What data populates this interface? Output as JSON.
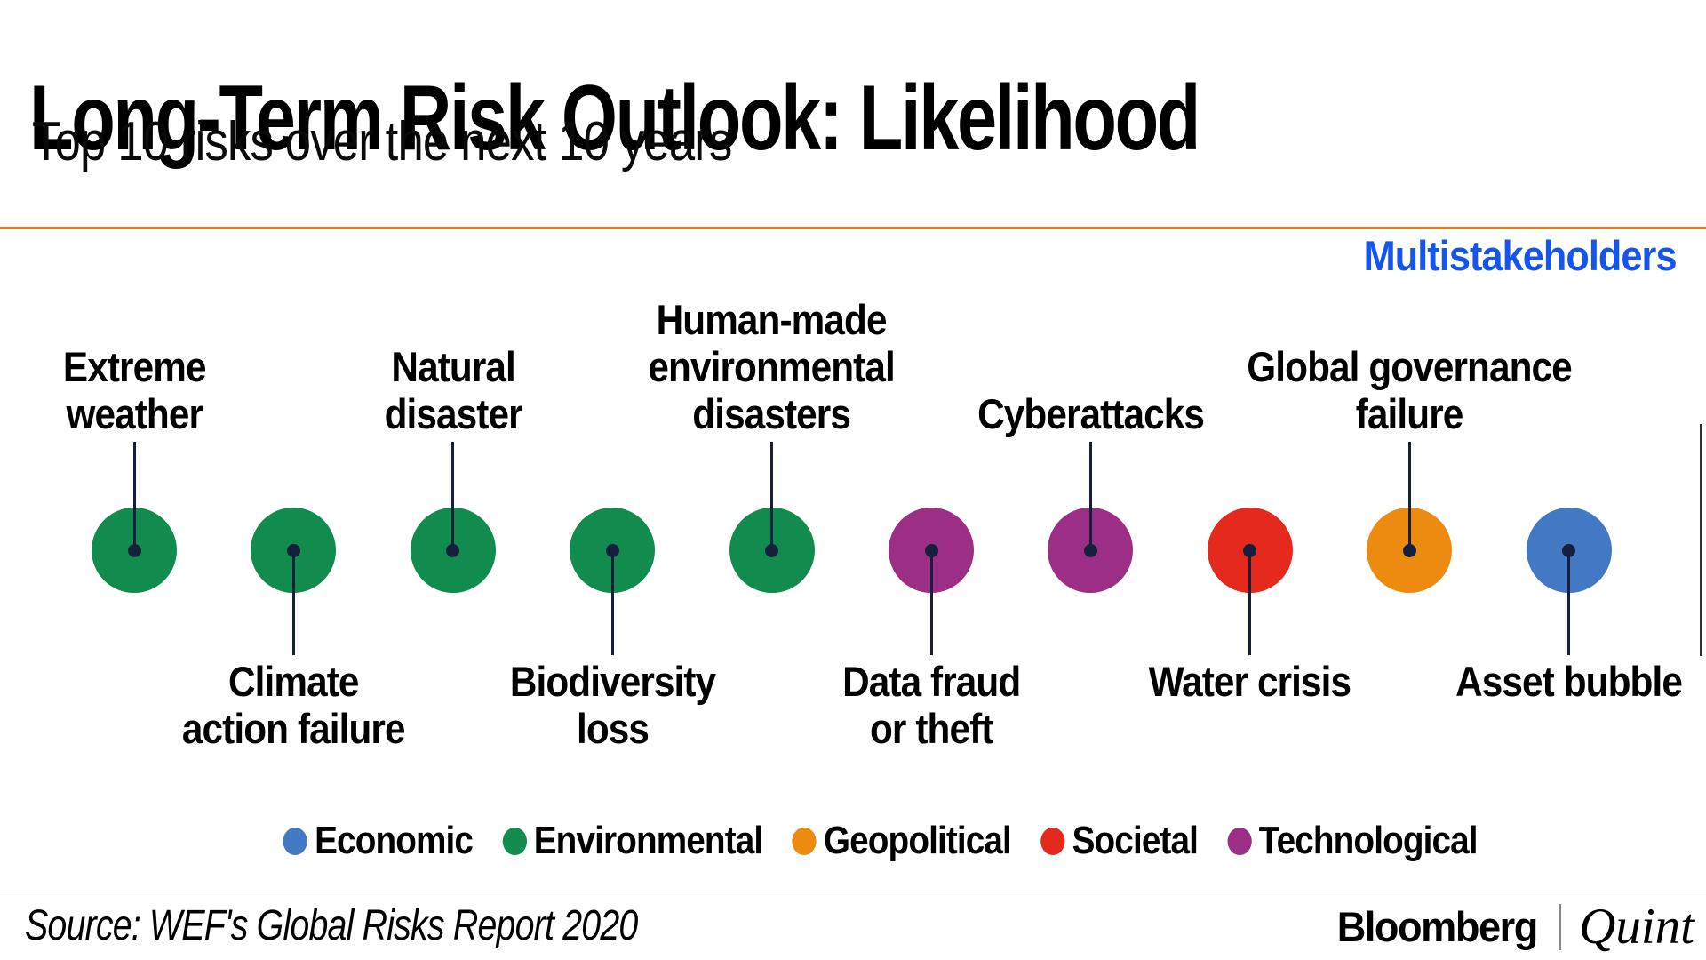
{
  "header": {
    "title": "Long-Term Risk Outlook: Likelihood",
    "subtitle": "Top 10 risks over the next 10 years",
    "annotation_tag": "Multistakeholders"
  },
  "chart_data": {
    "type": "scatter",
    "title": "Long-Term Risk Outlook: Likelihood",
    "subtitle": "Top 10 risks over the next 10 years",
    "annotation": "Multistakeholders",
    "x_encoding": "rank 1-10, most likely risk on the left",
    "grid": false,
    "legend_position": "bottom",
    "risks": [
      {
        "rank": 1,
        "label": "Extreme weather",
        "label_lines": [
          "Extreme",
          "weather"
        ],
        "category": "Environmental",
        "label_position": "above"
      },
      {
        "rank": 2,
        "label": "Climate action failure",
        "label_lines": [
          "Climate",
          "action failure"
        ],
        "category": "Environmental",
        "label_position": "below"
      },
      {
        "rank": 3,
        "label": "Natural disaster",
        "label_lines": [
          "Natural",
          "disaster"
        ],
        "category": "Environmental",
        "label_position": "above"
      },
      {
        "rank": 4,
        "label": "Biodiversity loss",
        "label_lines": [
          "Biodiversity",
          "loss"
        ],
        "category": "Environmental",
        "label_position": "below"
      },
      {
        "rank": 5,
        "label": "Human-made environmental disasters",
        "label_lines": [
          "Human-made",
          "environmental",
          "disasters"
        ],
        "category": "Environmental",
        "label_position": "above"
      },
      {
        "rank": 6,
        "label": "Data fraud or theft",
        "label_lines": [
          "Data fraud",
          "or theft"
        ],
        "category": "Technological",
        "label_position": "below"
      },
      {
        "rank": 7,
        "label": "Cyberattacks",
        "label_lines": [
          "Cyberattacks"
        ],
        "category": "Technological",
        "label_position": "above"
      },
      {
        "rank": 8,
        "label": "Water crisis",
        "label_lines": [
          "Water crisis"
        ],
        "category": "Societal",
        "label_position": "below"
      },
      {
        "rank": 9,
        "label": "Global governance failure",
        "label_lines": [
          "Global governance",
          "failure"
        ],
        "category": "Geopolitical",
        "label_position": "above"
      },
      {
        "rank": 10,
        "label": "Asset bubble",
        "label_lines": [
          "Asset bubble"
        ],
        "category": "Economic",
        "label_position": "below"
      }
    ],
    "category_colors": {
      "Economic": "#4379C4",
      "Environmental": "#118B4E",
      "Geopolitical": "#EC8B0F",
      "Societal": "#E6291D",
      "Technological": "#9C2E85"
    },
    "legend": [
      "Economic",
      "Environmental",
      "Geopolitical",
      "Societal",
      "Technological"
    ],
    "accent_colors": {
      "rule_orange": "#E87722",
      "annotation_blue": "#1655EB",
      "connector_navy": "#15203E"
    }
  },
  "footer": {
    "source": "Source: WEF's Global Risks Report 2020",
    "brand_left": "Bloomberg",
    "brand_right": "Quint"
  }
}
